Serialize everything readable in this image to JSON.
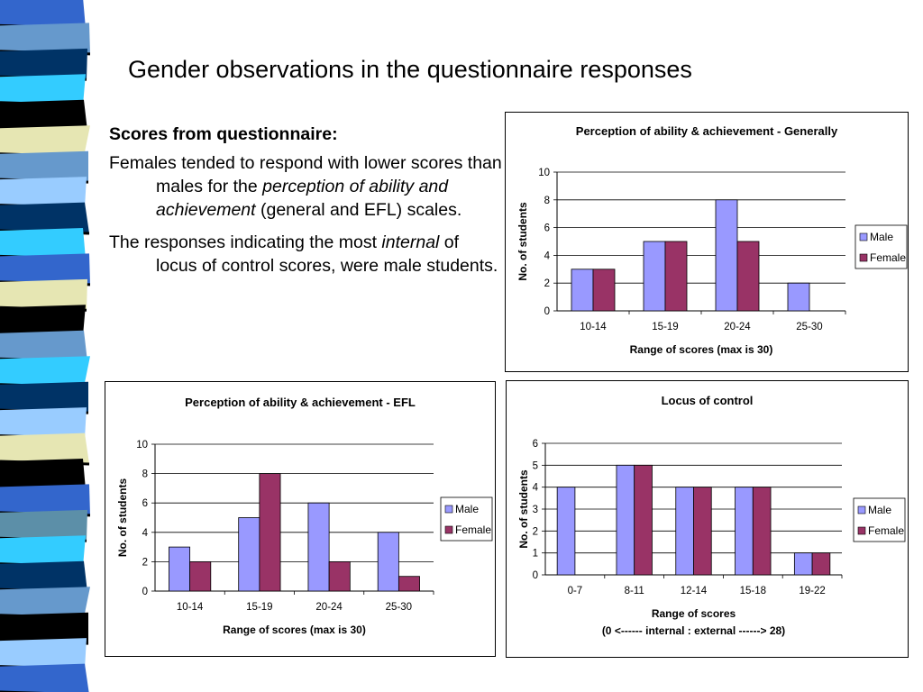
{
  "slide": {
    "title": "Gender observations in the questionnaire responses",
    "subheading": "Scores from questionnaire:",
    "para1": {
      "pre": "Females tended to respond with lower scores than males for the ",
      "em": "perception of ability and achievement",
      "post": " (general and EFL) scales."
    },
    "para2": {
      "pre": "The responses indicating the most ",
      "em": "internal",
      "post": " of locus of control scores, were male students."
    }
  },
  "colors": {
    "male": "#9999FF",
    "female": "#993366",
    "stripe_palette": [
      "#003366",
      "#3366CC",
      "#6699CC",
      "#33CCFF",
      "#99CCFF",
      "#E6E6B3",
      "#000000",
      "#5C8FA8"
    ]
  },
  "chart_data": [
    {
      "type": "bar",
      "title": "Perception of ability & achievement - Generally",
      "categories": [
        "10-14",
        "15-19",
        "20-24",
        "25-30"
      ],
      "series": [
        {
          "name": "Male",
          "values": [
            3,
            5,
            8,
            2
          ]
        },
        {
          "name": "Female",
          "values": [
            3,
            5,
            5,
            0
          ]
        }
      ],
      "xlabel": "Range of scores (max is 30)",
      "xlabel2": "",
      "ylabel": "No. of students",
      "ylim": [
        0,
        10
      ],
      "yticks": [
        0,
        2,
        4,
        6,
        8,
        10
      ],
      "grid": true,
      "legend": "right"
    },
    {
      "type": "bar",
      "title": "Perception of ability & achievement - EFL",
      "categories": [
        "10-14",
        "15-19",
        "20-24",
        "25-30"
      ],
      "series": [
        {
          "name": "Male",
          "values": [
            3,
            5,
            6,
            4
          ]
        },
        {
          "name": "Female",
          "values": [
            2,
            8,
            2,
            1
          ]
        }
      ],
      "xlabel": "Range of scores (max is 30)",
      "xlabel2": "",
      "ylabel": "No. of students",
      "ylim": [
        0,
        10
      ],
      "yticks": [
        0,
        2,
        4,
        6,
        8,
        10
      ],
      "grid": true,
      "legend": "right"
    },
    {
      "type": "bar",
      "title": "Locus of control",
      "categories": [
        "0-7",
        "8-11",
        "12-14",
        "15-18",
        "19-22"
      ],
      "series": [
        {
          "name": "Male",
          "values": [
            4,
            5,
            4,
            4,
            1
          ]
        },
        {
          "name": "Female",
          "values": [
            0,
            5,
            4,
            4,
            1
          ]
        }
      ],
      "xlabel": "Range of scores",
      "xlabel2": "(0 <------ internal : external ------> 28)",
      "ylabel": "No. of students",
      "ylim": [
        0,
        6
      ],
      "yticks": [
        0,
        1,
        2,
        3,
        4,
        5,
        6
      ],
      "grid": true,
      "legend": "right"
    }
  ]
}
